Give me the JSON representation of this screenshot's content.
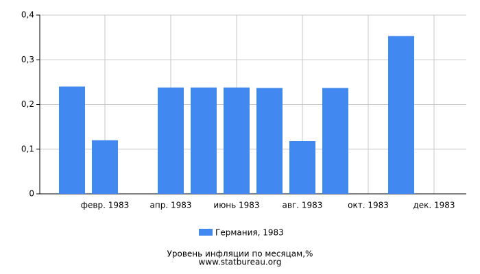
{
  "chart_data": {
    "type": "bar",
    "categories": [
      null,
      "февр. 1983",
      null,
      "апр. 1983",
      null,
      "июнь 1983",
      null,
      "авг. 1983",
      null,
      "окт. 1983",
      null,
      "дек. 1983"
    ],
    "series": [
      {
        "name": "Германия, 1983",
        "color": "#4189f0",
        "values": [
          0.24,
          0.12,
          0,
          0.238,
          0.238,
          0.238,
          0.237,
          0.118,
          0.237,
          0,
          0.353,
          0
        ]
      }
    ],
    "ylim": [
      0,
      0.4
    ],
    "yticks": [
      0,
      {
        "value": 0.1,
        "label": "0,1"
      },
      {
        "value": 0.2,
        "label": "0,2"
      },
      {
        "value": 0.3,
        "label": "0,3"
      },
      {
        "value": 0.4,
        "label": "0,4"
      }
    ],
    "grid": true,
    "legend": "bottom",
    "footer": [
      "Уровень инфляции по месяцам,%",
      "www.statbureau.org"
    ]
  }
}
